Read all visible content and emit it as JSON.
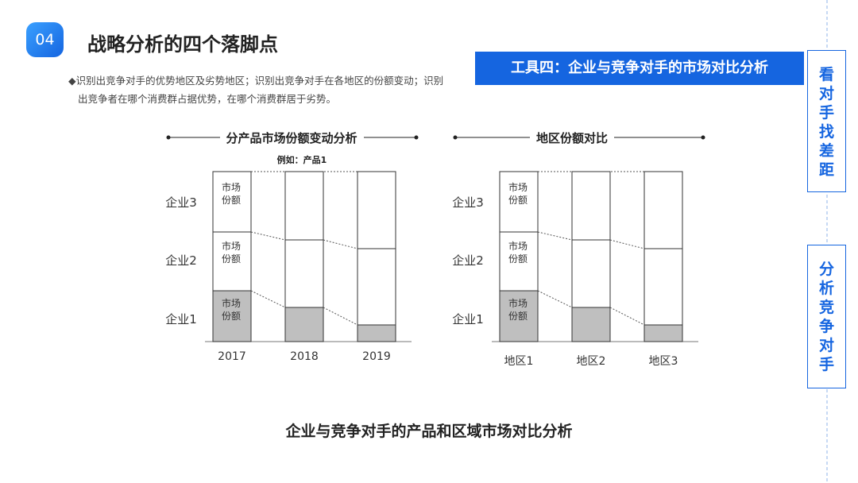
{
  "header": {
    "badge": "04",
    "title": "战略分析的四个落脚点"
  },
  "bullet": {
    "lines": [
      "◆识别出竞争对手的优势地区及劣势地区；识别出竞争对手在各地区的份额变动；识别",
      "出竞争者在哪个消费群占据优势，在哪个消费群居于劣势。"
    ]
  },
  "banner": "工具四：企业与竞争对手的市场对比分析",
  "side_tabs": [
    "看对手找差距",
    "分析竞争对手"
  ],
  "diagrams": [
    {
      "title": "分产品市场份额变动分析",
      "subtitle": "例如：产品1",
      "rows": [
        "企业3",
        "企业2",
        "企业1"
      ],
      "columns": [
        "2017",
        "2018",
        "2019"
      ],
      "cell_label": "市场份额"
    },
    {
      "title": "地区份额对比",
      "rows": [
        "企业3",
        "企业2",
        "企业1"
      ],
      "columns": [
        "地区1",
        "地区2",
        "地区3"
      ],
      "cell_label": "市场份额"
    }
  ],
  "caption": "企业与竞争对手的产品和区域市场对比分析"
}
